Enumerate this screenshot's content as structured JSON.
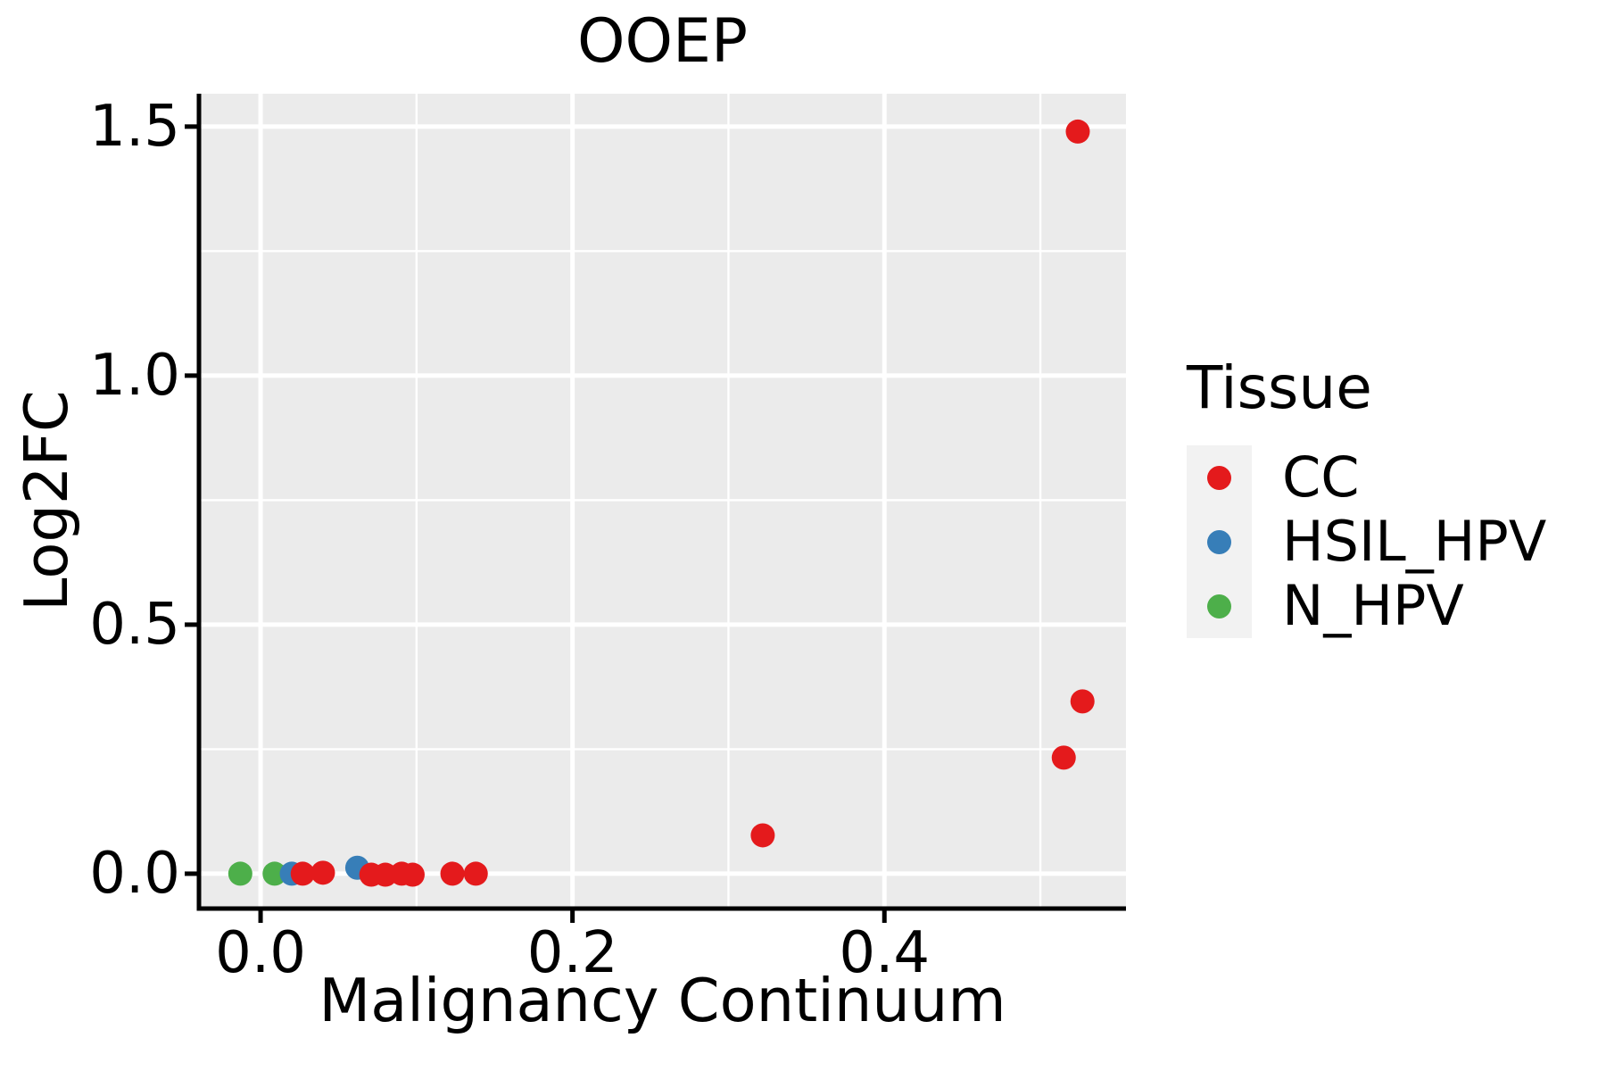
{
  "chart_data": {
    "type": "scatter",
    "title": "OOEP",
    "xlabel": "Malignancy Continuum",
    "ylabel": "Log2FC",
    "xlim": [
      -0.0395,
      0.5549
    ],
    "ylim": [
      -0.07,
      1.566
    ],
    "grid": true,
    "panel_background": "#EBEBEB",
    "gridline_color": "#FFFFFF",
    "axis_color": "#000000",
    "x_ticks": [
      {
        "value": 0.0,
        "label": "0.0"
      },
      {
        "value": 0.2,
        "label": "0.2"
      },
      {
        "value": 0.4,
        "label": "0.4"
      }
    ],
    "y_ticks": [
      {
        "value": 0.0,
        "label": "0.0"
      },
      {
        "value": 0.5,
        "label": "0.5"
      },
      {
        "value": 1.0,
        "label": "1.0"
      },
      {
        "value": 1.5,
        "label": "1.5"
      }
    ],
    "x_minor_ticks": [
      0.1,
      0.3,
      0.5
    ],
    "y_minor_ticks": [
      0.25,
      0.75,
      1.25
    ],
    "legend": {
      "title": "Tissue",
      "position": "right",
      "key_background": "#F2F2F2",
      "entries": [
        {
          "label": "CC",
          "color": "#E41A1C"
        },
        {
          "label": "HSIL_HPV",
          "color": "#377EB8"
        },
        {
          "label": "N_HPV",
          "color": "#4DAF4A"
        }
      ]
    },
    "series": [
      {
        "name": "N_HPV",
        "color": "#4DAF4A",
        "points": [
          [
            -0.013,
            0.0
          ],
          [
            0.009,
            0.0
          ]
        ]
      },
      {
        "name": "HSIL_HPV",
        "color": "#377EB8",
        "points": [
          [
            0.02,
            0.0
          ],
          [
            0.062,
            0.012
          ]
        ]
      },
      {
        "name": "CC",
        "color": "#E41A1C",
        "points": [
          [
            0.027,
            0.0
          ],
          [
            0.04,
            0.002
          ],
          [
            0.071,
            -0.002
          ],
          [
            0.08,
            -0.002
          ],
          [
            0.0905,
            0.0
          ],
          [
            0.0975,
            -0.002
          ],
          [
            0.123,
            0.0
          ],
          [
            0.138,
            0.0
          ],
          [
            0.322,
            0.077
          ],
          [
            0.515,
            0.233
          ],
          [
            0.527,
            0.346
          ],
          [
            0.524,
            1.49
          ]
        ]
      }
    ]
  }
}
